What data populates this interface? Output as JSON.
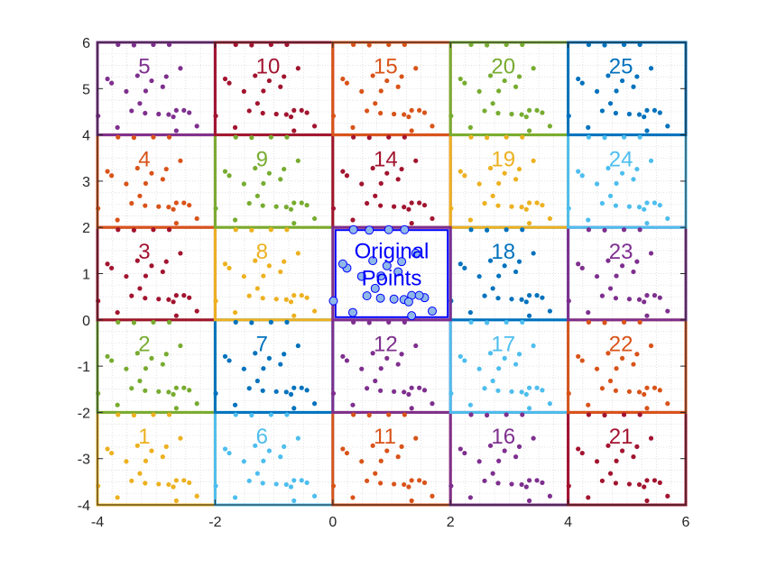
{
  "chart_data": {
    "type": "scatter",
    "title": "",
    "xlabel": "",
    "ylabel": "",
    "xlim": [
      -4,
      6
    ],
    "ylim": [
      -4,
      6
    ],
    "xticks": [
      -4,
      -2,
      0,
      2,
      4,
      6
    ],
    "yticks": [
      -4,
      -3,
      -2,
      -1,
      0,
      1,
      2,
      3,
      4,
      5,
      6
    ],
    "grid": "minor dotted",
    "original_points": {
      "label_line1": "Original",
      "label_line2": "Points",
      "color": "#0000ff",
      "fill": "#8fb8e8",
      "x": [
        0.35,
        0.62,
        0.95,
        1.22,
        0.24,
        0.68,
        0.92,
        1.17,
        1.41,
        0.17,
        0.49,
        0.82,
        1.11,
        1.34,
        1.56,
        1.69,
        0.01,
        0.58,
        0.72,
        0.81,
        1.04,
        1.21,
        1.29,
        1.47,
        0.34,
        1.34
      ],
      "y": [
        1.95,
        1.94,
        1.95,
        1.95,
        1.12,
        1.28,
        1.17,
        1.26,
        1.44,
        1.21,
        0.94,
        0.95,
        1.04,
        0.53,
        0.48,
        0.19,
        0.41,
        0.52,
        0.68,
        0.47,
        0.45,
        0.44,
        0.39,
        0.53,
        0.16,
        0.09
      ]
    },
    "tiles": [
      {
        "label": "1",
        "x0": -4,
        "y0": -4,
        "color": "#EDB120"
      },
      {
        "label": "2",
        "x0": -4,
        "y0": -2,
        "color": "#77AC30"
      },
      {
        "label": "3",
        "x0": -4,
        "y0": 0,
        "color": "#A2142F"
      },
      {
        "label": "4",
        "x0": -4,
        "y0": 2,
        "color": "#D95319"
      },
      {
        "label": "5",
        "x0": -4,
        "y0": 4,
        "color": "#7E2F8E"
      },
      {
        "label": "6",
        "x0": -2,
        "y0": -4,
        "color": "#4DBEEE"
      },
      {
        "label": "7",
        "x0": -2,
        "y0": -2,
        "color": "#0072BD"
      },
      {
        "label": "8",
        "x0": -2,
        "y0": 0,
        "color": "#EDB120"
      },
      {
        "label": "9",
        "x0": -2,
        "y0": 2,
        "color": "#77AC30"
      },
      {
        "label": "10",
        "x0": -2,
        "y0": 4,
        "color": "#A2142F"
      },
      {
        "label": "11",
        "x0": 0,
        "y0": -4,
        "color": "#D95319"
      },
      {
        "label": "12",
        "x0": 0,
        "y0": -2,
        "color": "#7E2F8E"
      },
      {
        "label": "14",
        "x0": 0,
        "y0": 2,
        "color": "#A2142F"
      },
      {
        "label": "15",
        "x0": 0,
        "y0": 4,
        "color": "#D95319"
      },
      {
        "label": "16",
        "x0": 2,
        "y0": -4,
        "color": "#7E2F8E"
      },
      {
        "label": "17",
        "x0": 2,
        "y0": -2,
        "color": "#4DBEEE"
      },
      {
        "label": "18",
        "x0": 2,
        "y0": 0,
        "color": "#0072BD"
      },
      {
        "label": "19",
        "x0": 2,
        "y0": 2,
        "color": "#EDB120"
      },
      {
        "label": "20",
        "x0": 2,
        "y0": 4,
        "color": "#77AC30"
      },
      {
        "label": "21",
        "x0": 4,
        "y0": -4,
        "color": "#A2142F"
      },
      {
        "label": "22",
        "x0": 4,
        "y0": -2,
        "color": "#D95319"
      },
      {
        "label": "23",
        "x0": 4,
        "y0": 0,
        "color": "#7E2F8E"
      },
      {
        "label": "24",
        "x0": 4,
        "y0": 2,
        "color": "#4DBEEE"
      },
      {
        "label": "25",
        "x0": 4,
        "y0": 4,
        "color": "#0072BD"
      }
    ],
    "center_tile": {
      "x0": 0,
      "y0": 0,
      "color": "#7E2F8E",
      "inner_color": "#0000ff"
    }
  }
}
